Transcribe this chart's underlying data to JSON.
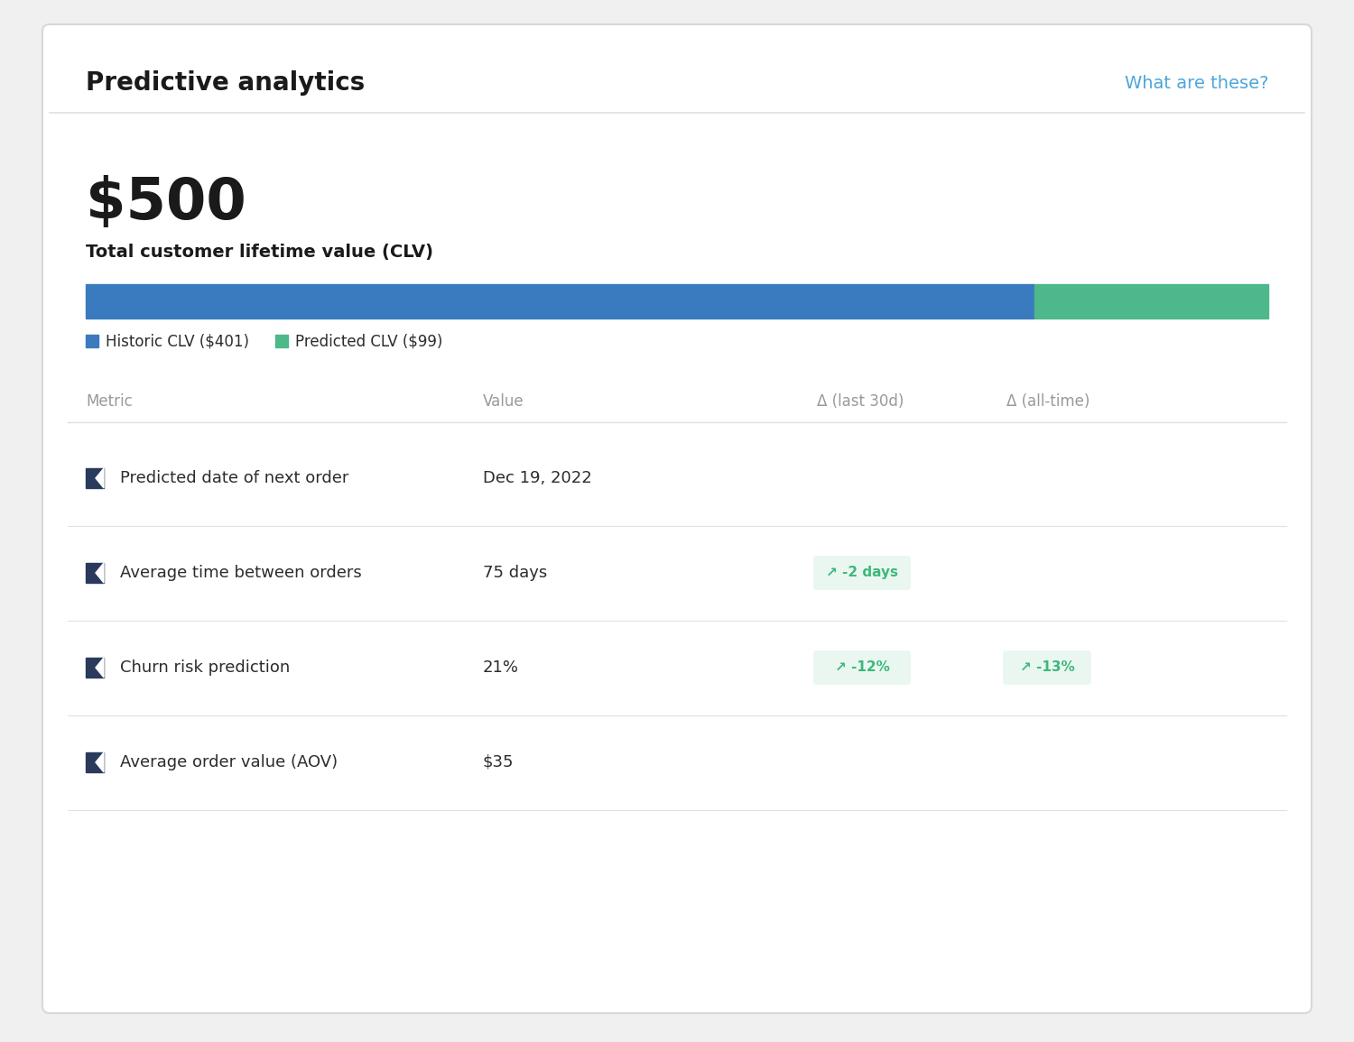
{
  "title": "Predictive analytics",
  "link_text": "What are these?",
  "link_color": "#4da6d9",
  "title_color": "#1a1a1a",
  "title_fontsize": 18,
  "bg_color": "#f0f0f0",
  "card_color": "#ffffff",
  "border_color": "#d8d8d8",
  "clv_value": "$500",
  "clv_label": "Total customer lifetime value (CLV)",
  "historic_clv_label": "Historic CLV ($401)",
  "predicted_clv_label": "Predicted CLV ($99)",
  "historic_clv_value": 401,
  "predicted_clv_value": 99,
  "total_clv": 500,
  "historic_color": "#3a7abf",
  "predicted_color": "#4db88a",
  "table_header": [
    "Metric",
    "Value",
    "Δ (last 30d)",
    "Δ (all-time)"
  ],
  "table_header_color": "#999999",
  "rows": [
    {
      "metric": "Predicted date of next order",
      "value": "Dec 19, 2022",
      "delta_30d": "",
      "delta_alltime": "",
      "icon_color": "#2a3a5c"
    },
    {
      "metric": "Average time between orders",
      "value": "75 days",
      "delta_30d": "↗ -2 days",
      "delta_alltime": "",
      "icon_color": "#2a3a5c"
    },
    {
      "metric": "Churn risk prediction",
      "value": "21%",
      "delta_30d": "↗ -12%",
      "delta_alltime": "↗ -13%",
      "icon_color": "#2a3a5c"
    },
    {
      "metric": "Average order value (AOV)",
      "value": "$35",
      "delta_30d": "",
      "delta_alltime": "",
      "icon_color": "#2a3a5c"
    }
  ],
  "badge_bg": "#eaf7f1",
  "badge_color": "#3db87a",
  "metric_fontsize": 13,
  "value_fontsize": 13,
  "delta_fontsize": 11,
  "row_text_color": "#2c2c2c",
  "separator_color": "#e0e0e0",
  "header_text_color": "#aaaaaa"
}
